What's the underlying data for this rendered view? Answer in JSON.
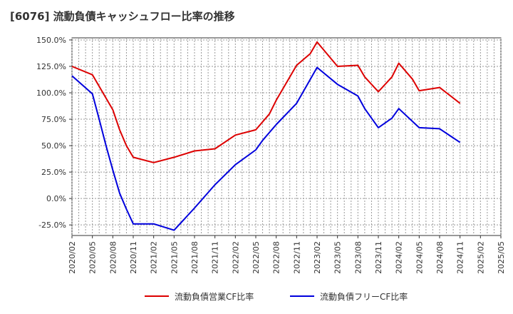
{
  "chart_data": {
    "type": "line",
    "title": "[6076]  流動負債キャッシュフロー比率の推移",
    "xlabel": "",
    "ylabel": "",
    "x": [
      "2020/02",
      "2020/05",
      "2020/08",
      "2020/11",
      "2021/02",
      "2021/05",
      "2021/08",
      "2021/11",
      "2022/02",
      "2022/05",
      "2022/08",
      "2022/11",
      "2023/02",
      "2023/05",
      "2023/08",
      "2023/11",
      "2024/02",
      "2024/05",
      "2024/08",
      "2024/11",
      "2025/02",
      "2025/05"
    ],
    "ylim": [
      -35,
      152
    ],
    "yticks": [
      150,
      125,
      100,
      75,
      50,
      25,
      0,
      -25
    ],
    "ytick_labels": [
      "150.0%",
      "125.0%",
      "100.0%",
      "75.0%",
      "50.0%",
      "25.0%",
      "0.0%",
      "-25.0%"
    ],
    "grid": true,
    "legend_position": "bottom",
    "series": [
      {
        "name": "流動負債営業CF比率",
        "color": "#dd0000",
        "points": [
          {
            "x": "2020/02",
            "y": 125
          },
          {
            "x": "2020/05",
            "y": 117
          },
          {
            "x": "2020/08",
            "y": 84
          },
          {
            "x": "2020/09",
            "y": 65
          },
          {
            "x": "2020/10",
            "y": 50
          },
          {
            "x": "2020/11",
            "y": 39
          },
          {
            "x": "2021/02",
            "y": 34
          },
          {
            "x": "2021/05",
            "y": 39
          },
          {
            "x": "2021/08",
            "y": 45
          },
          {
            "x": "2021/11",
            "y": 47
          },
          {
            "x": "2022/02",
            "y": 60
          },
          {
            "x": "2022/05",
            "y": 65
          },
          {
            "x": "2022/07",
            "y": 80
          },
          {
            "x": "2022/08",
            "y": 93
          },
          {
            "x": "2022/11",
            "y": 126
          },
          {
            "x": "2023/01",
            "y": 137
          },
          {
            "x": "2023/02",
            "y": 148
          },
          {
            "x": "2023/05",
            "y": 125
          },
          {
            "x": "2023/08",
            "y": 126
          },
          {
            "x": "2023/09",
            "y": 115
          },
          {
            "x": "2023/11",
            "y": 101
          },
          {
            "x": "2024/01",
            "y": 115
          },
          {
            "x": "2024/02",
            "y": 128
          },
          {
            "x": "2024/04",
            "y": 113
          },
          {
            "x": "2024/05",
            "y": 102
          },
          {
            "x": "2024/08",
            "y": 105
          },
          {
            "x": "2024/11",
            "y": 90
          }
        ]
      },
      {
        "name": "流動負債フリーCF比率",
        "color": "#0000dd",
        "points": [
          {
            "x": "2020/02",
            "y": 116
          },
          {
            "x": "2020/05",
            "y": 99
          },
          {
            "x": "2020/06",
            "y": 75
          },
          {
            "x": "2020/07",
            "y": 50
          },
          {
            "x": "2020/08",
            "y": 27
          },
          {
            "x": "2020/09",
            "y": 5
          },
          {
            "x": "2020/10",
            "y": -10
          },
          {
            "x": "2020/11",
            "y": -24
          },
          {
            "x": "2021/02",
            "y": -24
          },
          {
            "x": "2021/05",
            "y": -30
          },
          {
            "x": "2021/08",
            "y": -9
          },
          {
            "x": "2021/11",
            "y": 13
          },
          {
            "x": "2022/02",
            "y": 32
          },
          {
            "x": "2022/05",
            "y": 46
          },
          {
            "x": "2022/06",
            "y": 55
          },
          {
            "x": "2022/08",
            "y": 70
          },
          {
            "x": "2022/11",
            "y": 90
          },
          {
            "x": "2023/02",
            "y": 124
          },
          {
            "x": "2023/05",
            "y": 108
          },
          {
            "x": "2023/08",
            "y": 97
          },
          {
            "x": "2023/09",
            "y": 85
          },
          {
            "x": "2023/11",
            "y": 67
          },
          {
            "x": "2024/01",
            "y": 76
          },
          {
            "x": "2024/02",
            "y": 85
          },
          {
            "x": "2024/05",
            "y": 67
          },
          {
            "x": "2024/08",
            "y": 66
          },
          {
            "x": "2024/11",
            "y": 53
          }
        ]
      }
    ]
  }
}
